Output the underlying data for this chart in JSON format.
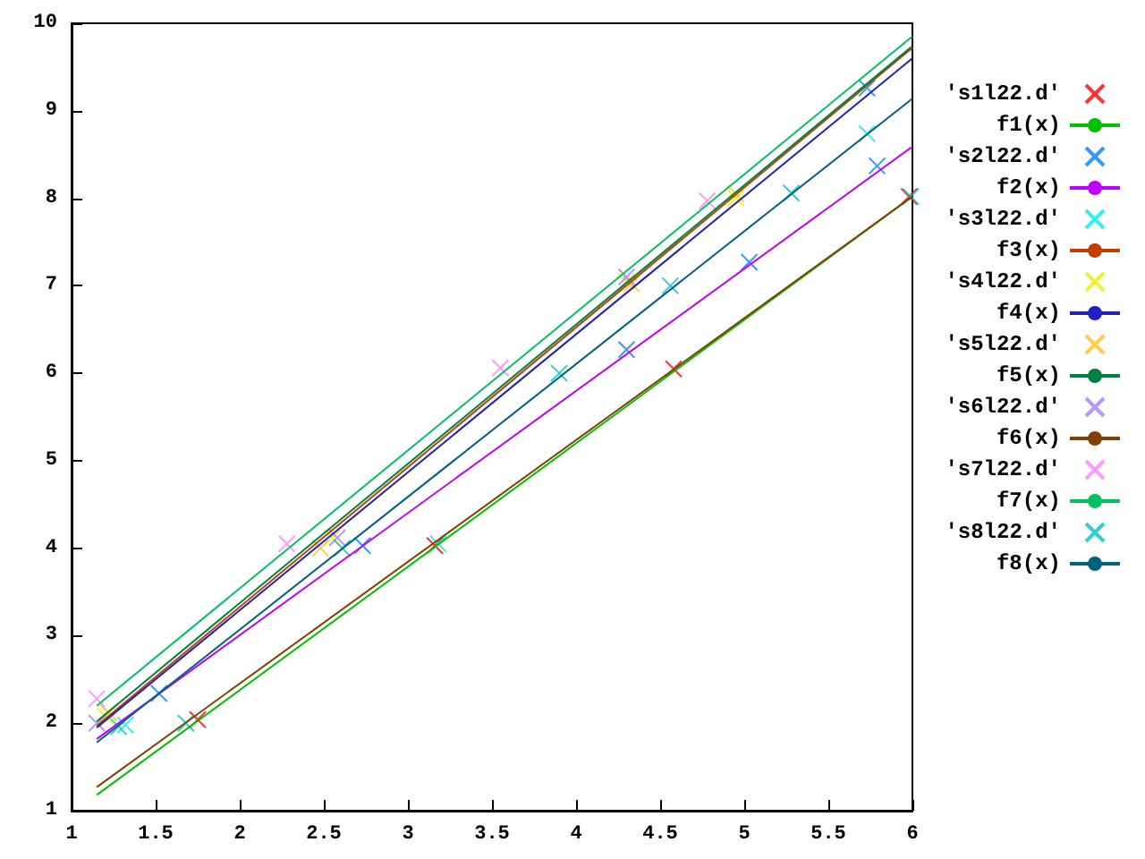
{
  "chart_data": {
    "type": "scatter",
    "xlim": [
      1,
      6
    ],
    "ylim": [
      1,
      10
    ],
    "xticks": [
      1,
      1.5,
      2,
      2.5,
      3,
      3.5,
      4,
      4.5,
      5,
      5.5,
      6
    ],
    "yticks": [
      1,
      2,
      3,
      4,
      5,
      6,
      7,
      8,
      9,
      10
    ],
    "grid": false,
    "legend": "right",
    "marker": "cross",
    "series": [
      {
        "name": "'s1l22.d'",
        "color": "#ff0000",
        "x": [
          1.75,
          3.16,
          4.58,
          5.98
        ],
        "values": [
          2.04,
          4.03,
          6.05,
          8.02
        ]
      },
      {
        "name": "f1(x)",
        "type": "line",
        "marker": "none",
        "color": "#00c000",
        "x": [
          1.15,
          6
        ],
        "values": [
          1.18,
          8.02
        ]
      },
      {
        "name": "'s2l22.d'",
        "color": "#0080ff",
        "x": [
          1.52,
          2.73,
          4.3,
          5.03,
          5.79,
          5.73
        ],
        "values": [
          2.34,
          4.03,
          6.27,
          7.27,
          8.37,
          9.26
        ]
      },
      {
        "name": "f2(x)",
        "type": "line",
        "marker": "none",
        "color": "#c000ff",
        "x": [
          1.15,
          6
        ],
        "values": [
          1.82,
          8.59
        ]
      },
      {
        "name": "'s3l22.d'",
        "color": "#00eeee",
        "x": [
          1.32,
          3.18,
          5.73
        ],
        "values": [
          1.98,
          4.05,
          8.74
        ]
      },
      {
        "name": "f3(x)",
        "type": "line",
        "marker": "none",
        "color": "#c04000",
        "x": [
          1.15,
          6
        ],
        "values": [
          1.97,
          9.72
        ]
      },
      {
        "name": "'s4l22.d'",
        "color": "#eeee00",
        "x": [
          1.2,
          2.55,
          4.3,
          4.95
        ],
        "values": [
          2.08,
          4.12,
          7.05,
          8.0
        ]
      },
      {
        "name": "f4(x)",
        "type": "line",
        "marker": "none",
        "color": "#2020c0",
        "x": [
          1.15,
          6
        ],
        "values": [
          1.95,
          9.6
        ]
      },
      {
        "name": "'s5l22.d'",
        "color": "#ffc020",
        "x": [
          1.22,
          2.48,
          4.33,
          4.95
        ],
        "values": [
          2.12,
          4.0,
          7.02,
          8.05
        ]
      },
      {
        "name": "f5(x)",
        "type": "line",
        "marker": "none",
        "color": "#008040",
        "x": [
          1.15,
          6
        ],
        "values": [
          2.02,
          9.74
        ]
      },
      {
        "name": "'s6l22.d'",
        "color": "#a080ff",
        "x": [
          1.15,
          2.58,
          4.3
        ],
        "values": [
          2.0,
          4.12,
          7.1
        ]
      },
      {
        "name": "f6(x)",
        "type": "line",
        "marker": "none",
        "color": "#804000",
        "x": [
          1.15,
          6
        ],
        "values": [
          1.27,
          8.02
        ]
      },
      {
        "name": "'s7l22.d'",
        "color": "#ff80ff",
        "x": [
          1.15,
          2.28,
          3.55,
          4.78
        ],
        "values": [
          2.28,
          4.05,
          6.06,
          7.97
        ]
      },
      {
        "name": "f7(x)",
        "type": "line",
        "marker": "none",
        "color": "#00c060",
        "x": [
          1.15,
          6
        ],
        "values": [
          2.2,
          9.85
        ]
      },
      {
        "name": "'s8l22.d'",
        "color": "#00c0c0",
        "x": [
          1.28,
          1.68,
          2.61,
          3.9,
          4.56,
          5.28,
          5.99
        ],
        "values": [
          1.96,
          2.0,
          4.0,
          6.0,
          7.0,
          8.06,
          8.02
        ]
      },
      {
        "name": "f8(x)",
        "type": "line",
        "marker": "none",
        "color": "#006080",
        "x": [
          1.15,
          6
        ],
        "values": [
          1.78,
          9.14
        ]
      }
    ]
  }
}
